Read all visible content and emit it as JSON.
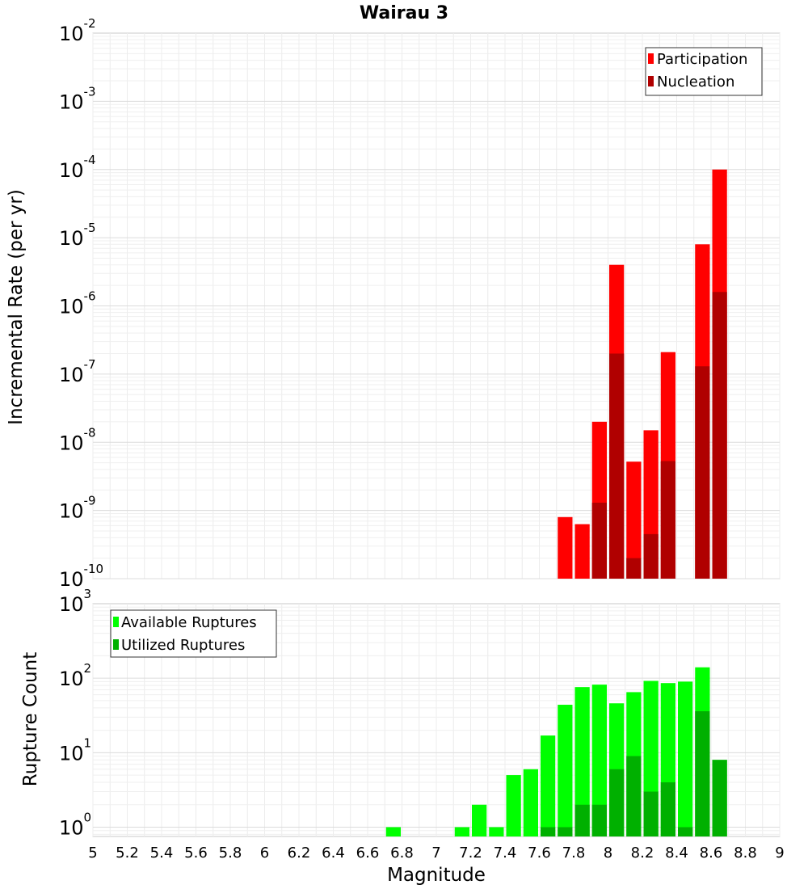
{
  "chart_data": [
    {
      "type": "bar",
      "title": "Wairau 3",
      "xlabel": "",
      "ylabel": "Incremental Rate (per yr)",
      "yscale": "log",
      "ylim": [
        1e-10,
        0.01
      ],
      "xlim": [
        5,
        9
      ],
      "bin_width": 0.1,
      "grid": true,
      "legend_position": "top-right",
      "y_ticks": [
        {
          "base": "10",
          "exp": "-10",
          "value": 1e-10
        },
        {
          "base": "10",
          "exp": "-9",
          "value": 1e-09
        },
        {
          "base": "10",
          "exp": "-8",
          "value": 1e-08
        },
        {
          "base": "10",
          "exp": "-7",
          "value": 1e-07
        },
        {
          "base": "10",
          "exp": "-6",
          "value": 1e-06
        },
        {
          "base": "10",
          "exp": "-5",
          "value": 1e-05
        },
        {
          "base": "10",
          "exp": "-4",
          "value": 0.0001
        },
        {
          "base": "10",
          "exp": "-3",
          "value": 0.001
        },
        {
          "base": "10",
          "exp": "-2",
          "value": 0.01
        }
      ],
      "series": [
        {
          "name": "Participation",
          "color": "#ff0000",
          "x": [
            7.75,
            7.85,
            7.95,
            8.05,
            8.15,
            8.25,
            8.35,
            8.55,
            8.65
          ],
          "values": [
            8e-10,
            6.3e-10,
            2e-08,
            4e-06,
            5.2e-09,
            1.5e-08,
            2.1e-07,
            8e-06,
            0.0001
          ]
        },
        {
          "name": "Nucleation",
          "color": "#b00000",
          "x": [
            7.95,
            8.05,
            8.15,
            8.25,
            8.35,
            8.55,
            8.65
          ],
          "values": [
            1.3e-09,
            2e-07,
            2e-10,
            4.5e-10,
            5.3e-09,
            1.3e-07,
            1.6e-06
          ]
        }
      ]
    },
    {
      "type": "bar",
      "title": "",
      "xlabel": "Magnitude",
      "ylabel": "Rupture Count",
      "yscale": "log",
      "ylim": [
        0.75,
        1000
      ],
      "xlim": [
        5,
        9
      ],
      "bin_width": 0.1,
      "grid": true,
      "legend_position": "top-left",
      "y_ticks": [
        {
          "base": "10",
          "exp": "0",
          "value": 1
        },
        {
          "base": "10",
          "exp": "1",
          "value": 10
        },
        {
          "base": "10",
          "exp": "2",
          "value": 100
        },
        {
          "base": "10",
          "exp": "3",
          "value": 1000
        }
      ],
      "x_ticks": [
        "5",
        "5.2",
        "5.4",
        "5.6",
        "5.8",
        "6",
        "6.2",
        "6.4",
        "6.6",
        "6.8",
        "7",
        "7.2",
        "7.4",
        "7.6",
        "7.8",
        "8",
        "8.2",
        "8.4",
        "8.6",
        "8.8",
        "9"
      ],
      "series": [
        {
          "name": "Available Ruptures",
          "color": "#00ff00",
          "x": [
            6.75,
            7.15,
            7.25,
            7.35,
            7.45,
            7.55,
            7.65,
            7.75,
            7.85,
            7.95,
            8.05,
            8.15,
            8.25,
            8.35,
            8.45,
            8.55,
            8.65
          ],
          "values": [
            1,
            1,
            2,
            1,
            5,
            6,
            17,
            44,
            76,
            82,
            46,
            65,
            92,
            86,
            90,
            140,
            8
          ]
        },
        {
          "name": "Utilized Ruptures",
          "color": "#00b000",
          "x": [
            7.65,
            7.75,
            7.85,
            7.95,
            8.05,
            8.15,
            8.25,
            8.35,
            8.45,
            8.55,
            8.65
          ],
          "values": [
            1,
            1,
            2,
            2,
            6,
            9,
            3,
            4,
            1,
            36,
            8
          ]
        }
      ]
    }
  ]
}
